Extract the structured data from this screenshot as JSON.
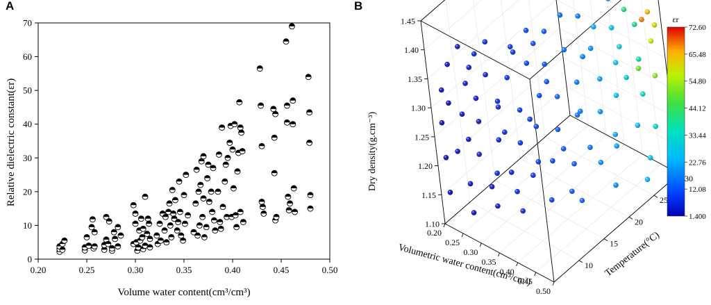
{
  "chart_data": [
    {
      "panel": "A",
      "type": "scatter",
      "xlabel": "Volume water content(cm³/cm³)",
      "ylabel": "Relative dielectric constant(εr)",
      "xlim": [
        0.2,
        0.5
      ],
      "ylim": [
        0,
        70
      ],
      "xticks": [
        "0.20",
        "0.25",
        "0.30",
        "0.35",
        "0.40",
        "0.45",
        "0.50"
      ],
      "yticks": [
        "0",
        "10",
        "20",
        "30",
        "40",
        "50",
        "60",
        "70"
      ],
      "marker": "half-filled circle",
      "points": [
        [
          0.222,
          2.2
        ],
        [
          0.222,
          3.0
        ],
        [
          0.222,
          3.8
        ],
        [
          0.225,
          2.8
        ],
        [
          0.225,
          4.5
        ],
        [
          0.227,
          5.5
        ],
        [
          0.248,
          2.6
        ],
        [
          0.248,
          3.5
        ],
        [
          0.25,
          6.5
        ],
        [
          0.252,
          4.0
        ],
        [
          0.255,
          9.5
        ],
        [
          0.256,
          11.8
        ],
        [
          0.257,
          3.2
        ],
        [
          0.258,
          8.0
        ],
        [
          0.258,
          3.8
        ],
        [
          0.268,
          2.8
        ],
        [
          0.268,
          4.2
        ],
        [
          0.27,
          12.5
        ],
        [
          0.27,
          5.8
        ],
        [
          0.272,
          4.5
        ],
        [
          0.273,
          11.2
        ],
        [
          0.276,
          2.5
        ],
        [
          0.276,
          3.2
        ],
        [
          0.278,
          8.0
        ],
        [
          0.279,
          6.0
        ],
        [
          0.282,
          9.5
        ],
        [
          0.282,
          3.8
        ],
        [
          0.285,
          7.0
        ],
        [
          0.298,
          16.0
        ],
        [
          0.298,
          4.5
        ],
        [
          0.3,
          13.5
        ],
        [
          0.3,
          10.5
        ],
        [
          0.301,
          5.0
        ],
        [
          0.302,
          2.5
        ],
        [
          0.303,
          3.5
        ],
        [
          0.304,
          8.5
        ],
        [
          0.305,
          5.5
        ],
        [
          0.306,
          12.0
        ],
        [
          0.307,
          6.5
        ],
        [
          0.308,
          3.0
        ],
        [
          0.308,
          9.0
        ],
        [
          0.31,
          18.5
        ],
        [
          0.31,
          4.0
        ],
        [
          0.312,
          7.5
        ],
        [
          0.313,
          12.0
        ],
        [
          0.314,
          10.5
        ],
        [
          0.315,
          3.5
        ],
        [
          0.315,
          6.0
        ],
        [
          0.322,
          7.0
        ],
        [
          0.323,
          4.5
        ],
        [
          0.325,
          10.5
        ],
        [
          0.326,
          5.5
        ],
        [
          0.328,
          13.5
        ],
        [
          0.33,
          8.5
        ],
        [
          0.331,
          12.5
        ],
        [
          0.332,
          5.0
        ],
        [
          0.334,
          14.0
        ],
        [
          0.335,
          16.5
        ],
        [
          0.336,
          10.0
        ],
        [
          0.337,
          6.5
        ],
        [
          0.338,
          20.5
        ],
        [
          0.339,
          13.5
        ],
        [
          0.34,
          12.0
        ],
        [
          0.341,
          17.5
        ],
        [
          0.343,
          8.5
        ],
        [
          0.344,
          11.0
        ],
        [
          0.345,
          23.0
        ],
        [
          0.346,
          14.0
        ],
        [
          0.347,
          7.0
        ],
        [
          0.349,
          5.5
        ],
        [
          0.35,
          19.0
        ],
        [
          0.351,
          10.5
        ],
        [
          0.352,
          25.0
        ],
        [
          0.354,
          13.0
        ],
        [
          0.36,
          8.0
        ],
        [
          0.362,
          16.5
        ],
        [
          0.363,
          26.5
        ],
        [
          0.364,
          7.0
        ],
        [
          0.365,
          20.0
        ],
        [
          0.366,
          10.0
        ],
        [
          0.367,
          22.0
        ],
        [
          0.368,
          29.0
        ],
        [
          0.369,
          12.5
        ],
        [
          0.37,
          18.0
        ],
        [
          0.37,
          30.5
        ],
        [
          0.371,
          6.5
        ],
        [
          0.373,
          9.5
        ],
        [
          0.374,
          24.0
        ],
        [
          0.375,
          28.0
        ],
        [
          0.376,
          17.0
        ],
        [
          0.378,
          20.0
        ],
        [
          0.379,
          14.0
        ],
        [
          0.38,
          27.0
        ],
        [
          0.381,
          11.5
        ],
        [
          0.382,
          8.5
        ],
        [
          0.385,
          20.0
        ],
        [
          0.386,
          31.0
        ],
        [
          0.387,
          11.0
        ],
        [
          0.388,
          9.0
        ],
        [
          0.389,
          39.0
        ],
        [
          0.39,
          15.5
        ],
        [
          0.392,
          23.0
        ],
        [
          0.393,
          28.0
        ],
        [
          0.394,
          12.5
        ],
        [
          0.395,
          30.0
        ],
        [
          0.397,
          34.5
        ],
        [
          0.398,
          39.5
        ],
        [
          0.399,
          12.5
        ],
        [
          0.4,
          32.5
        ],
        [
          0.401,
          21.0
        ],
        [
          0.402,
          40.0
        ],
        [
          0.403,
          13.0
        ],
        [
          0.404,
          9.5
        ],
        [
          0.405,
          26.0
        ],
        [
          0.406,
          31.5
        ],
        [
          0.407,
          46.5
        ],
        [
          0.408,
          39.0
        ],
        [
          0.408,
          14.0
        ],
        [
          0.409,
          37.5
        ],
        [
          0.41,
          32.0
        ],
        [
          0.411,
          11.0
        ],
        [
          0.428,
          56.5
        ],
        [
          0.429,
          45.5
        ],
        [
          0.43,
          33.5
        ],
        [
          0.43,
          17.0
        ],
        [
          0.431,
          15.5
        ],
        [
          0.432,
          13.5
        ],
        [
          0.442,
          44.5
        ],
        [
          0.443,
          36.0
        ],
        [
          0.443,
          25.5
        ],
        [
          0.444,
          43.0
        ],
        [
          0.444,
          11.5
        ],
        [
          0.445,
          12.5
        ],
        [
          0.455,
          64.5
        ],
        [
          0.456,
          45.5
        ],
        [
          0.456,
          40.5
        ],
        [
          0.457,
          18.5
        ],
        [
          0.458,
          14.5
        ],
        [
          0.459,
          16.5
        ],
        [
          0.461,
          69.0
        ],
        [
          0.462,
          47.0
        ],
        [
          0.462,
          40.0
        ],
        [
          0.463,
          21.0
        ],
        [
          0.464,
          14.0
        ],
        [
          0.478,
          54.0
        ],
        [
          0.479,
          43.5
        ],
        [
          0.479,
          34.5
        ],
        [
          0.48,
          19.0
        ],
        [
          0.48,
          15.0
        ]
      ]
    },
    {
      "panel": "B",
      "type": "scatter3d",
      "xlabel": "Volumetric water content(cm³/cm³)",
      "ylabel": "Temperature(°C)",
      "zlabel": "Dry density(g.cm⁻³)",
      "xlim": [
        0.2,
        0.5
      ],
      "ylim": [
        5,
        30
      ],
      "zlim": [
        1.1,
        1.45
      ],
      "xticks": [
        "0.20",
        "0.25",
        "0.30",
        "0.35",
        "0.40",
        "0.45",
        "0.50"
      ],
      "yticks": [
        "10",
        "15",
        "20",
        "25",
        "30"
      ],
      "zticks": [
        "1.10",
        "1.15",
        "1.20",
        "1.25",
        "1.30",
        "1.35",
        "1.40",
        "1.45"
      ],
      "colorbar": {
        "title": "εr",
        "min": 1.4,
        "max": 72.6,
        "ticks": [
          "72.60",
          "65.48",
          "54.80",
          "44.12",
          "33.44",
          "22.76",
          "12.08",
          "1.400"
        ]
      },
      "points": [
        [
          0.25,
          8,
          1.4,
          3
        ],
        [
          0.28,
          9,
          1.39,
          5
        ],
        [
          0.3,
          10,
          1.41,
          6
        ],
        [
          0.34,
          12,
          1.4,
          8
        ],
        [
          0.36,
          14,
          1.42,
          10
        ],
        [
          0.38,
          16,
          1.41,
          12
        ],
        [
          0.4,
          18,
          1.43,
          14
        ],
        [
          0.42,
          20,
          1.42,
          16
        ],
        [
          0.45,
          24,
          1.43,
          22
        ],
        [
          0.47,
          27,
          1.42,
          35
        ],
        [
          0.48,
          29,
          1.44,
          45
        ],
        [
          0.22,
          6,
          1.33,
          2
        ],
        [
          0.26,
          8,
          1.34,
          4
        ],
        [
          0.29,
          10,
          1.35,
          5
        ],
        [
          0.32,
          12,
          1.34,
          7
        ],
        [
          0.35,
          14,
          1.36,
          9
        ],
        [
          0.37,
          16,
          1.35,
          11
        ],
        [
          0.4,
          18,
          1.37,
          14
        ],
        [
          0.43,
          21,
          1.36,
          18
        ],
        [
          0.45,
          24,
          1.38,
          26
        ],
        [
          0.47,
          27,
          1.37,
          38
        ],
        [
          0.48,
          29,
          1.38,
          62
        ],
        [
          0.46,
          29,
          1.36,
          66
        ],
        [
          0.21,
          6,
          1.27,
          2
        ],
        [
          0.24,
          8,
          1.28,
          3
        ],
        [
          0.27,
          9,
          1.27,
          4
        ],
        [
          0.3,
          11,
          1.29,
          6
        ],
        [
          0.33,
          13,
          1.28,
          8
        ],
        [
          0.36,
          15,
          1.3,
          10
        ],
        [
          0.38,
          17,
          1.29,
          13
        ],
        [
          0.41,
          19,
          1.31,
          16
        ],
        [
          0.43,
          22,
          1.3,
          20
        ],
        [
          0.45,
          24,
          1.32,
          28
        ],
        [
          0.47,
          27,
          1.31,
          36
        ],
        [
          0.48,
          29,
          1.33,
          55
        ],
        [
          0.21,
          6,
          1.21,
          2
        ],
        [
          0.23,
          7,
          1.22,
          3
        ],
        [
          0.26,
          9,
          1.21,
          4
        ],
        [
          0.29,
          11,
          1.23,
          5
        ],
        [
          0.32,
          13,
          1.22,
          7
        ],
        [
          0.34,
          15,
          1.24,
          9
        ],
        [
          0.37,
          17,
          1.23,
          12
        ],
        [
          0.4,
          19,
          1.25,
          15
        ],
        [
          0.42,
          22,
          1.24,
          19
        ],
        [
          0.44,
          24,
          1.26,
          25
        ],
        [
          0.47,
          27,
          1.25,
          33
        ],
        [
          0.48,
          29,
          1.27,
          50
        ],
        [
          0.21,
          6,
          1.15,
          2
        ],
        [
          0.24,
          8,
          1.16,
          3
        ],
        [
          0.27,
          10,
          1.15,
          4
        ],
        [
          0.3,
          12,
          1.17,
          5
        ],
        [
          0.33,
          14,
          1.16,
          7
        ],
        [
          0.36,
          16,
          1.18,
          9
        ],
        [
          0.39,
          18,
          1.17,
          12
        ],
        [
          0.41,
          20,
          1.19,
          15
        ],
        [
          0.44,
          23,
          1.18,
          20
        ],
        [
          0.46,
          26,
          1.2,
          24
        ],
        [
          0.48,
          28,
          1.19,
          30
        ],
        [
          0.24,
          8,
          1.11,
          3
        ],
        [
          0.28,
          10,
          1.12,
          4
        ],
        [
          0.32,
          12,
          1.11,
          6
        ],
        [
          0.36,
          15,
          1.12,
          9
        ],
        [
          0.4,
          18,
          1.11,
          13
        ],
        [
          0.44,
          22,
          1.12,
          18
        ],
        [
          0.47,
          26,
          1.11,
          22
        ],
        [
          0.23,
          7,
          1.37,
          3
        ],
        [
          0.27,
          9,
          1.31,
          4
        ],
        [
          0.31,
          11,
          1.25,
          6
        ],
        [
          0.35,
          14,
          1.19,
          8
        ],
        [
          0.39,
          17,
          1.13,
          12
        ],
        [
          0.42,
          20,
          1.35,
          17
        ],
        [
          0.46,
          25,
          1.29,
          27
        ],
        [
          0.25,
          8,
          1.24,
          3
        ],
        [
          0.29,
          10,
          1.18,
          5
        ],
        [
          0.33,
          13,
          1.38,
          7
        ],
        [
          0.37,
          16,
          1.32,
          11
        ],
        [
          0.41,
          19,
          1.26,
          16
        ],
        [
          0.44,
          23,
          1.2,
          21
        ],
        [
          0.47,
          27,
          1.14,
          25
        ],
        [
          0.26,
          9,
          1.36,
          4
        ],
        [
          0.3,
          11,
          1.3,
          6
        ],
        [
          0.34,
          14,
          1.26,
          8
        ],
        [
          0.38,
          17,
          1.2,
          12
        ],
        [
          0.42,
          21,
          1.16,
          18
        ],
        [
          0.45,
          25,
          1.34,
          30
        ],
        [
          0.22,
          7,
          1.3,
          2
        ],
        [
          0.31,
          12,
          1.14,
          6
        ],
        [
          0.36,
          15,
          1.39,
          10
        ],
        [
          0.43,
          22,
          1.39,
          22
        ],
        [
          0.46,
          26,
          1.4,
          40
        ],
        [
          0.48,
          30,
          1.35,
          58
        ],
        [
          0.45,
          28,
          1.28,
          48
        ]
      ]
    }
  ],
  "panels": {
    "a": "A",
    "b": "B"
  }
}
